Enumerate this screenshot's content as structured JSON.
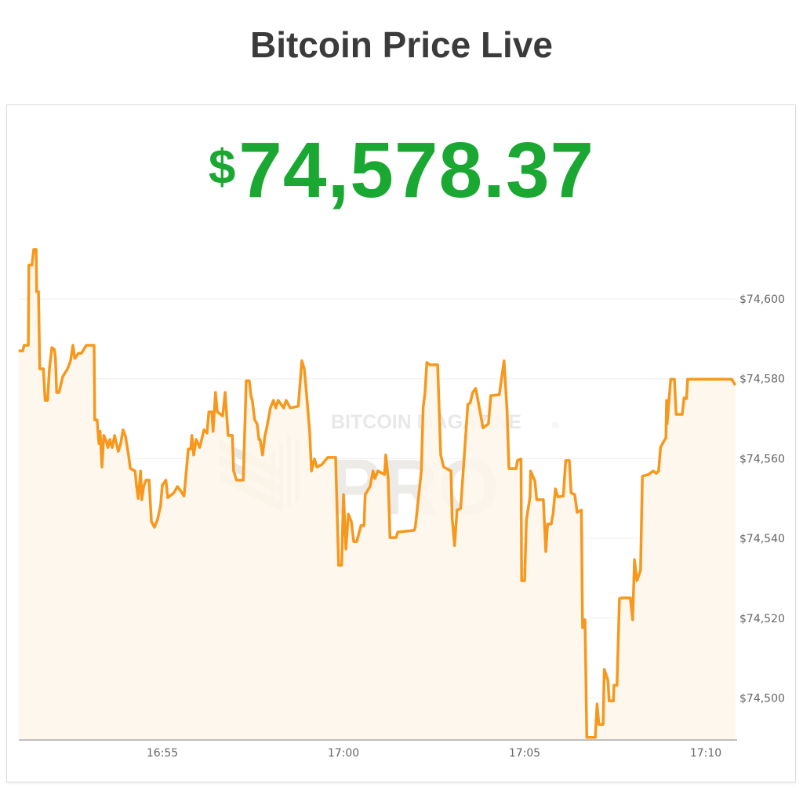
{
  "page": {
    "title": "Bitcoin Price Live"
  },
  "ticker": {
    "currency_symbol": "$",
    "value": "74,578.37",
    "color": "#1aa832"
  },
  "watermark": {
    "line1": "BITCOIN MAGAZINE",
    "line2": "PRO",
    "mark": "®"
  },
  "chart_data": {
    "type": "area",
    "title": "",
    "xlabel": "",
    "ylabel": "",
    "x_is_time": true,
    "xlim": [
      "16:51:02",
      "17:10:49"
    ],
    "ylim": [
      74489.7,
      74616
    ],
    "x_ticks": [
      "16:55",
      "17:00",
      "17:05",
      "17:10"
    ],
    "y_ticks": [
      {
        "value": 74600,
        "label": "$74,600"
      },
      {
        "value": 74580,
        "label": "$74,580"
      },
      {
        "value": 74560,
        "label": "$74,560"
      },
      {
        "value": 74540,
        "label": "$74,540"
      },
      {
        "value": 74520,
        "label": "$74,520"
      },
      {
        "value": 74500,
        "label": "$74,500"
      }
    ],
    "y_axis_position": "right",
    "grid": "horizontal",
    "line_color": "#f7981d",
    "fill_color": "#fdf6ea",
    "points": [
      [
        "16:51:02",
        74587.0
      ],
      [
        "16:51:09",
        74587.0
      ],
      [
        "16:51:11",
        74588.4
      ],
      [
        "16:51:18",
        74588.4
      ],
      [
        "16:51:19",
        74608.5
      ],
      [
        "16:51:24",
        74608.5
      ],
      [
        "16:51:27",
        74612.4
      ],
      [
        "16:51:31",
        74612.4
      ],
      [
        "16:51:32",
        74601.8
      ],
      [
        "16:51:35",
        74601.8
      ],
      [
        "16:51:37",
        74582.5
      ],
      [
        "16:51:43",
        74582.5
      ],
      [
        "16:51:46",
        74574.6
      ],
      [
        "16:51:50",
        74574.6
      ],
      [
        "16:51:53",
        74582.5
      ],
      [
        "16:51:57",
        74587.8
      ],
      [
        "16:52:01",
        74587.4
      ],
      [
        "16:52:03",
        74585.4
      ],
      [
        "16:52:05",
        74576.6
      ],
      [
        "16:52:09",
        74576.6
      ],
      [
        "16:52:15",
        74580.5
      ],
      [
        "16:52:23",
        74582.5
      ],
      [
        "16:52:28",
        74584.5
      ],
      [
        "16:52:32",
        74588.4
      ],
      [
        "16:52:35",
        74585.1
      ],
      [
        "16:52:41",
        74586.4
      ],
      [
        "16:52:46",
        74586.4
      ],
      [
        "16:52:54",
        74588.4
      ],
      [
        "16:53:07",
        74588.4
      ],
      [
        "16:53:08",
        74569.7
      ],
      [
        "16:53:12",
        74569.7
      ],
      [
        "16:53:15",
        74563.8
      ],
      [
        "16:53:17",
        74566.8
      ],
      [
        "16:53:20",
        74557.9
      ],
      [
        "16:53:23",
        74565.8
      ],
      [
        "16:53:26",
        74564.8
      ],
      [
        "16:53:30",
        74562.8
      ],
      [
        "16:53:33",
        74564.8
      ],
      [
        "16:53:37",
        74562.8
      ],
      [
        "16:53:41",
        74565.8
      ],
      [
        "16:53:43",
        74564.4
      ],
      [
        "16:53:47",
        74561.8
      ],
      [
        "16:53:51",
        74563.8
      ],
      [
        "16:53:55",
        74567.2
      ],
      [
        "16:53:59",
        74565.6
      ],
      [
        "16:54:04",
        74560.9
      ],
      [
        "16:54:07",
        74557.5
      ],
      [
        "16:54:15",
        74556.9
      ],
      [
        "16:54:17",
        74553.5
      ],
      [
        "16:54:20",
        74550.0
      ],
      [
        "16:54:24",
        74556.9
      ],
      [
        "16:54:26",
        74549.7
      ],
      [
        "16:54:29",
        74553.0
      ],
      [
        "16:54:33",
        74554.6
      ],
      [
        "16:54:38",
        74554.6
      ],
      [
        "16:54:42",
        74544.2
      ],
      [
        "16:54:47",
        74542.8
      ],
      [
        "16:54:52",
        74544.7
      ],
      [
        "16:54:57",
        74548.1
      ],
      [
        "16:55:00",
        74553.4
      ],
      [
        "16:55:06",
        74554.6
      ],
      [
        "16:55:09",
        74550.2
      ],
      [
        "16:55:19",
        74551.4
      ],
      [
        "16:55:25",
        74553.0
      ],
      [
        "16:55:30",
        74552.0
      ],
      [
        "16:55:36",
        74550.6
      ],
      [
        "16:55:43",
        74562.4
      ],
      [
        "16:55:47",
        74562.4
      ],
      [
        "16:55:49",
        74565.8
      ],
      [
        "16:55:52",
        74560.9
      ],
      [
        "16:55:56",
        74564.8
      ],
      [
        "16:56:02",
        74562.8
      ],
      [
        "16:56:09",
        74567.2
      ],
      [
        "16:56:14",
        74566.4
      ],
      [
        "16:56:17",
        74571.7
      ],
      [
        "16:56:22",
        74571.7
      ],
      [
        "16:56:24",
        74566.8
      ],
      [
        "16:56:28",
        74576.6
      ],
      [
        "16:56:31",
        74571.7
      ],
      [
        "16:56:40",
        74570.7
      ],
      [
        "16:56:44",
        74576.6
      ],
      [
        "16:56:49",
        74565.8
      ],
      [
        "16:56:56",
        74565.8
      ],
      [
        "16:56:58",
        74556.9
      ],
      [
        "16:57:03",
        74554.6
      ],
      [
        "16:57:14",
        74554.6
      ],
      [
        "16:57:19",
        74579.5
      ],
      [
        "16:57:24",
        74579.5
      ],
      [
        "16:57:27",
        74575.6
      ],
      [
        "16:57:29",
        74574.6
      ],
      [
        "16:57:33",
        74569.7
      ],
      [
        "16:57:37",
        74568.7
      ],
      [
        "16:57:40",
        74564.8
      ],
      [
        "16:57:42",
        74564.8
      ],
      [
        "16:57:46",
        74560.9
      ],
      [
        "16:57:50",
        74565.8
      ],
      [
        "16:57:53",
        74567.7
      ],
      [
        "16:57:59",
        74572.7
      ],
      [
        "16:58:04",
        74574.6
      ],
      [
        "16:58:08",
        74572.7
      ],
      [
        "16:58:12",
        74574.6
      ],
      [
        "16:58:21",
        74572.7
      ],
      [
        "16:58:25",
        74574.6
      ],
      [
        "16:58:32",
        74572.7
      ],
      [
        "16:58:45",
        74573.1
      ],
      [
        "16:58:47",
        74576.6
      ],
      [
        "16:58:51",
        74584.5
      ],
      [
        "16:58:55",
        74582.5
      ],
      [
        "16:58:58",
        74577.6
      ],
      [
        "16:59:04",
        74566.8
      ],
      [
        "16:59:07",
        74556.9
      ],
      [
        "16:59:12",
        74559.9
      ],
      [
        "16:59:16",
        74557.9
      ],
      [
        "16:59:24",
        74558.5
      ],
      [
        "16:59:34",
        74560.3
      ],
      [
        "16:59:47",
        74560.3
      ],
      [
        "16:59:52",
        74533.3
      ],
      [
        "16:59:57",
        74533.3
      ],
      [
        "17:00:00",
        74551.0
      ],
      [
        "17:00:04",
        74537.3
      ],
      [
        "17:00:08",
        74546.1
      ],
      [
        "17:00:13",
        74544.2
      ],
      [
        "17:00:17",
        74539.2
      ],
      [
        "17:00:22",
        74539.2
      ],
      [
        "17:00:29",
        74543.2
      ],
      [
        "17:00:34",
        74543.2
      ],
      [
        "17:00:36",
        74551.0
      ],
      [
        "17:00:44",
        74553.0
      ],
      [
        "17:00:49",
        74556.9
      ],
      [
        "17:00:52",
        74555.0
      ],
      [
        "17:00:57",
        74556.9
      ],
      [
        "17:01:08",
        74556.0
      ],
      [
        "17:01:10",
        74560.9
      ],
      [
        "17:01:14",
        74555.0
      ],
      [
        "17:01:17",
        74540.2
      ],
      [
        "17:01:27",
        74540.2
      ],
      [
        "17:01:30",
        74541.6
      ],
      [
        "17:01:57",
        74542.0
      ],
      [
        "17:01:59",
        74542.8
      ],
      [
        "17:02:09",
        74556.9
      ],
      [
        "17:02:12",
        74572.7
      ],
      [
        "17:02:15",
        74576.6
      ],
      [
        "17:02:18",
        74584.1
      ],
      [
        "17:02:23",
        74583.5
      ],
      [
        "17:02:36",
        74583.5
      ],
      [
        "17:02:41",
        74560.9
      ],
      [
        "17:02:46",
        74557.9
      ],
      [
        "17:02:58",
        74556.9
      ],
      [
        "17:03:00",
        74545.1
      ],
      [
        "17:03:04",
        74538.2
      ],
      [
        "17:03:08",
        74547.1
      ],
      [
        "17:03:14",
        74547.5
      ],
      [
        "17:03:26",
        74573.6
      ],
      [
        "17:03:30",
        74574.0
      ],
      [
        "17:03:34",
        74576.6
      ],
      [
        "17:03:39",
        74577.6
      ],
      [
        "17:03:45",
        74572.7
      ],
      [
        "17:03:51",
        74567.7
      ],
      [
        "17:04:00",
        74568.7
      ],
      [
        "17:04:04",
        74575.8
      ],
      [
        "17:04:18",
        74576.0
      ],
      [
        "17:04:26",
        74584.5
      ],
      [
        "17:04:31",
        74571.7
      ],
      [
        "17:04:34",
        74557.5
      ],
      [
        "17:04:46",
        74557.5
      ],
      [
        "17:04:48",
        74559.5
      ],
      [
        "17:04:54",
        74559.9
      ],
      [
        "17:04:55",
        74529.4
      ],
      [
        "17:05:00",
        74529.4
      ],
      [
        "17:05:03",
        74544.7
      ],
      [
        "17:05:09",
        74550.4
      ],
      [
        "17:05:10",
        74556.9
      ],
      [
        "17:05:17",
        74554.4
      ],
      [
        "17:05:20",
        74549.7
      ],
      [
        "17:05:31",
        74549.7
      ],
      [
        "17:05:35",
        74536.7
      ],
      [
        "17:05:38",
        74543.6
      ],
      [
        "17:05:44",
        74543.6
      ],
      [
        "17:05:47",
        74546.1
      ],
      [
        "17:05:51",
        74552.4
      ],
      [
        "17:05:55",
        74550.4
      ],
      [
        "17:06:04",
        74550.6
      ],
      [
        "17:06:08",
        74559.5
      ],
      [
        "17:06:14",
        74559.5
      ],
      [
        "17:06:17",
        74551.4
      ],
      [
        "17:06:23",
        74551.0
      ],
      [
        "17:06:27",
        74546.5
      ],
      [
        "17:06:34",
        74547.1
      ],
      [
        "17:06:36",
        74517.6
      ],
      [
        "17:06:40",
        74519.6
      ],
      [
        "17:06:43",
        74490.1
      ],
      [
        "17:06:57",
        74490.1
      ],
      [
        "17:07:00",
        74498.5
      ],
      [
        "17:07:03",
        74493.4
      ],
      [
        "17:07:10",
        74493.4
      ],
      [
        "17:07:12",
        74507.2
      ],
      [
        "17:07:18",
        74504.4
      ],
      [
        "17:07:20",
        74499.3
      ],
      [
        "17:07:27",
        74499.3
      ],
      [
        "17:07:28",
        74503.2
      ],
      [
        "17:07:33",
        74503.2
      ],
      [
        "17:07:37",
        74524.9
      ],
      [
        "17:07:41",
        74525.1
      ],
      [
        "17:07:55",
        74525.1
      ],
      [
        "17:07:59",
        74519.6
      ],
      [
        "17:08:02",
        74534.7
      ],
      [
        "17:08:06",
        74529.4
      ],
      [
        "17:08:12",
        74532.0
      ],
      [
        "17:08:15",
        74555.6
      ],
      [
        "17:08:25",
        74556.0
      ],
      [
        "17:08:33",
        74556.9
      ],
      [
        "17:08:38",
        74556.3
      ],
      [
        "17:08:42",
        74556.9
      ],
      [
        "17:08:45",
        74562.8
      ],
      [
        "17:08:50",
        74564.2
      ],
      [
        "17:08:54",
        74565.2
      ],
      [
        "17:08:55",
        74574.6
      ],
      [
        "17:08:56",
        74568.7
      ],
      [
        "17:09:02",
        74579.9
      ],
      [
        "17:09:08",
        74579.9
      ],
      [
        "17:09:11",
        74571.1
      ],
      [
        "17:09:21",
        74571.1
      ],
      [
        "17:09:24",
        74575.2
      ],
      [
        "17:09:28",
        74575.0
      ],
      [
        "17:09:30",
        74579.9
      ],
      [
        "17:10:43",
        74579.9
      ],
      [
        "17:10:49",
        74578.4
      ]
    ]
  }
}
